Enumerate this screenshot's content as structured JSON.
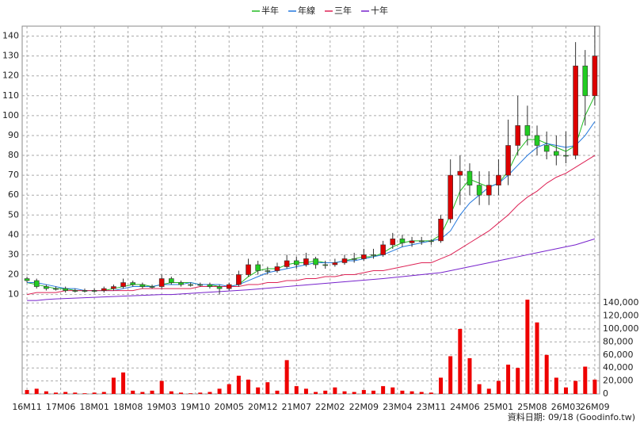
{
  "chart_data": {
    "type": "candlestick",
    "grid": true,
    "up_color": "#dd0000",
    "down_color": "#22cc22",
    "source": "資料日期: 09/18 (Goodinfo.tw)",
    "xlim": [
      -1,
      119
    ],
    "xticks": [
      {
        "value": 0,
        "label": "16M11"
      },
      {
        "value": 7,
        "label": "17M06"
      },
      {
        "value": 14,
        "label": "18M01"
      },
      {
        "value": 21,
        "label": "18M08"
      },
      {
        "value": 28,
        "label": "19M03"
      },
      {
        "value": 35,
        "label": "19M10"
      },
      {
        "value": 42,
        "label": "20M05"
      },
      {
        "value": 49,
        "label": "20M12"
      },
      {
        "value": 56,
        "label": "21M07"
      },
      {
        "value": 63,
        "label": "22M02"
      },
      {
        "value": 70,
        "label": "22M09"
      },
      {
        "value": 77,
        "label": "23M04"
      },
      {
        "value": 84,
        "label": "23M11"
      },
      {
        "value": 91,
        "label": "24M06"
      },
      {
        "value": 98,
        "label": "25M01"
      },
      {
        "value": 105,
        "label": "25M08"
      },
      {
        "value": 112,
        "label": "26M03"
      },
      {
        "value": 118,
        "label": "26M09"
      }
    ],
    "ylim": [
      -40,
      145
    ],
    "yticks": [
      10,
      20,
      30,
      40,
      50,
      60,
      70,
      80,
      90,
      100,
      110,
      120,
      130,
      140
    ],
    "x": [
      0,
      2,
      4,
      6,
      8,
      10,
      12,
      14,
      16,
      18,
      20,
      22,
      24,
      26,
      28,
      30,
      32,
      34,
      36,
      38,
      40,
      42,
      44,
      46,
      48,
      50,
      52,
      54,
      56,
      58,
      60,
      62,
      64,
      66,
      68,
      70,
      72,
      74,
      76,
      78,
      80,
      82,
      84,
      86,
      88,
      90,
      92,
      94,
      96,
      98,
      100,
      102,
      104,
      106,
      108,
      110,
      112,
      114,
      116,
      118
    ],
    "open": [
      18,
      17,
      14,
      13,
      13,
      12,
      12,
      12,
      12,
      13,
      14,
      16,
      15,
      14,
      14,
      18,
      16,
      15,
      15,
      15,
      14,
      13,
      15,
      20,
      25,
      22,
      22,
      24,
      27,
      25,
      28,
      25,
      25,
      26,
      28,
      28,
      30,
      30,
      35,
      38,
      36,
      37,
      37,
      37,
      48,
      70,
      72,
      65,
      60,
      65,
      70,
      85,
      95,
      90,
      85,
      82,
      80,
      80,
      125,
      110
    ],
    "high": [
      19,
      18,
      15,
      14,
      14,
      13,
      13,
      13,
      14,
      15,
      18,
      17,
      16,
      15,
      20,
      19,
      17,
      16,
      16,
      16,
      15,
      16,
      22,
      28,
      27,
      24,
      26,
      30,
      29,
      31,
      29,
      27,
      28,
      30,
      31,
      33,
      33,
      37,
      41,
      40,
      39,
      39,
      38,
      50,
      78,
      80,
      76,
      72,
      72,
      78,
      98,
      110,
      105,
      95,
      92,
      90,
      92,
      137,
      133,
      145
    ],
    "low": [
      16,
      13,
      12,
      12,
      11,
      11,
      11,
      11,
      11,
      12,
      13,
      14,
      13,
      13,
      13,
      15,
      14,
      14,
      14,
      13,
      10,
      12,
      14,
      19,
      20,
      20,
      21,
      23,
      23,
      24,
      23,
      23,
      24,
      25,
      26,
      27,
      28,
      29,
      33,
      34,
      34,
      35,
      35,
      36,
      46,
      55,
      60,
      55,
      55,
      60,
      65,
      80,
      85,
      80,
      78,
      75,
      76,
      78,
      95,
      105
    ],
    "close": [
      17,
      14,
      13,
      13,
      12,
      12,
      12,
      12,
      13,
      14,
      16,
      15,
      14,
      14,
      18,
      16,
      15,
      15,
      15,
      14,
      13,
      15,
      20,
      25,
      22,
      22,
      24,
      27,
      25,
      28,
      25,
      25,
      26,
      28,
      28,
      30,
      30,
      35,
      38,
      36,
      37,
      37,
      37,
      48,
      70,
      72,
      65,
      60,
      65,
      70,
      85,
      95,
      90,
      85,
      82,
      80,
      80,
      125,
      110,
      130
    ],
    "series": [
      {
        "name": "半年",
        "color": "#22bb22",
        "values": [
          16,
          15,
          14,
          13,
          13,
          12,
          12,
          12,
          12,
          13,
          14,
          15,
          15,
          14,
          15,
          16,
          16,
          16,
          15,
          15,
          14,
          14,
          15,
          19,
          22,
          23,
          23,
          25,
          26,
          26,
          27,
          26,
          26,
          27,
          28,
          29,
          29,
          31,
          34,
          36,
          37,
          37,
          37,
          40,
          50,
          62,
          68,
          66,
          64,
          66,
          72,
          82,
          88,
          88,
          86,
          84,
          82,
          85,
          100,
          110
        ]
      },
      {
        "name": "年線",
        "color": "#2277dd",
        "values": [
          16,
          16,
          15,
          14,
          13,
          13,
          12,
          12,
          12,
          12,
          13,
          14,
          14,
          14,
          15,
          15,
          15,
          16,
          15,
          15,
          15,
          14,
          15,
          17,
          19,
          21,
          22,
          23,
          24,
          25,
          26,
          26,
          26,
          27,
          27,
          28,
          29,
          30,
          32,
          34,
          35,
          36,
          37,
          38,
          42,
          50,
          56,
          60,
          64,
          66,
          70,
          75,
          80,
          84,
          86,
          85,
          84,
          85,
          90,
          97
        ]
      },
      {
        "name": "三年",
        "color": "#dd2255",
        "values": [
          10,
          11,
          11,
          11,
          12,
          12,
          12,
          12,
          12,
          12,
          12,
          12,
          13,
          13,
          13,
          13,
          13,
          13,
          14,
          14,
          14,
          14,
          14,
          15,
          15,
          16,
          16,
          17,
          17,
          18,
          18,
          19,
          19,
          20,
          20,
          21,
          22,
          22,
          23,
          24,
          25,
          26,
          26,
          28,
          30,
          33,
          36,
          39,
          42,
          46,
          50,
          55,
          59,
          62,
          66,
          69,
          71,
          74,
          77,
          80
        ]
      },
      {
        "name": "十年",
        "color": "#7722cc",
        "values": [
          7,
          7,
          7.5,
          7.8,
          8,
          8.2,
          8.4,
          8.6,
          8.8,
          9,
          9.2,
          9.4,
          9.6,
          9.8,
          10,
          10,
          10.3,
          10.6,
          10.9,
          11.2,
          11.5,
          11.8,
          12.1,
          12.4,
          12.8,
          13.2,
          13.6,
          14,
          14.4,
          14.8,
          15.2,
          15.6,
          16,
          16.4,
          16.8,
          17.2,
          17.6,
          18,
          18.5,
          19,
          19.5,
          20,
          20.5,
          21,
          22,
          23,
          24,
          25,
          26,
          27,
          28,
          29,
          30,
          31,
          32,
          33,
          34,
          35,
          36.5,
          38
        ]
      }
    ],
    "volume": {
      "color": "#ee0000",
      "ylim": [
        0,
        150000
      ],
      "yticks": [
        0,
        {
          "value": 20000,
          "label": "20,000"
        },
        {
          "value": 40000,
          "label": "40,000"
        },
        {
          "value": 60000,
          "label": "60,000"
        },
        {
          "value": 80000,
          "label": "80,000"
        },
        {
          "value": 100000,
          "label": "100,000"
        },
        {
          "value": 120000,
          "label": "120,000"
        },
        {
          "value": 140000,
          "label": "140,000"
        }
      ],
      "values": [
        6000,
        8000,
        4000,
        2000,
        3000,
        2000,
        1000,
        2000,
        3000,
        25000,
        33000,
        5000,
        3000,
        5000,
        20000,
        4000,
        2000,
        1000,
        2000,
        3000,
        8000,
        15000,
        28000,
        22000,
        10000,
        18000,
        5000,
        52000,
        12000,
        8000,
        3000,
        5000,
        10000,
        4000,
        3000,
        6000,
        5000,
        12000,
        10000,
        5000,
        4000,
        3000,
        2000,
        25000,
        58000,
        100000,
        55000,
        15000,
        8000,
        20000,
        45000,
        40000,
        145000,
        110000,
        60000,
        25000,
        10000,
        20000,
        42000,
        22000
      ]
    }
  }
}
